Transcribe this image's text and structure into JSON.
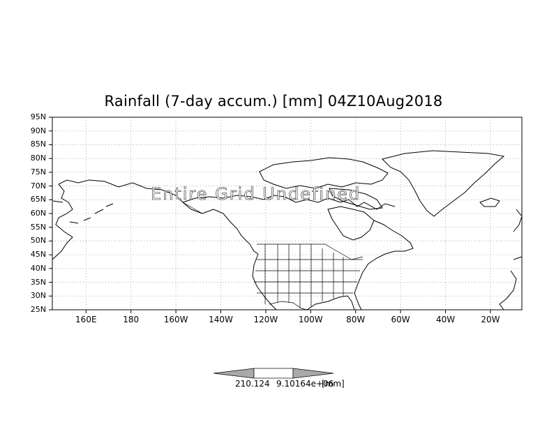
{
  "title": "Rainfall (7-day accum.) [mm] 04Z10Aug2018",
  "watermark": "Entire Grid Undefined",
  "map": {
    "lon_range": [
      145,
      354
    ],
    "lat_range": [
      25,
      95
    ],
    "grid": "dotted",
    "lat_ticks": [
      "95N",
      "90N",
      "85N",
      "80N",
      "75N",
      "70N",
      "65N",
      "60N",
      "55N",
      "50N",
      "45N",
      "40N",
      "35N",
      "30N",
      "25N"
    ],
    "lon_ticks": [
      "160E",
      "180",
      "160W",
      "140W",
      "120W",
      "100W",
      "80W",
      "60W",
      "40W",
      "20W"
    ]
  },
  "colorbar": {
    "labels": [
      "210.124",
      "9.10164e+06",
      "[mm]"
    ],
    "colors": [
      "#a9a9a9",
      "#ffffff",
      "#a9a9a9"
    ]
  }
}
